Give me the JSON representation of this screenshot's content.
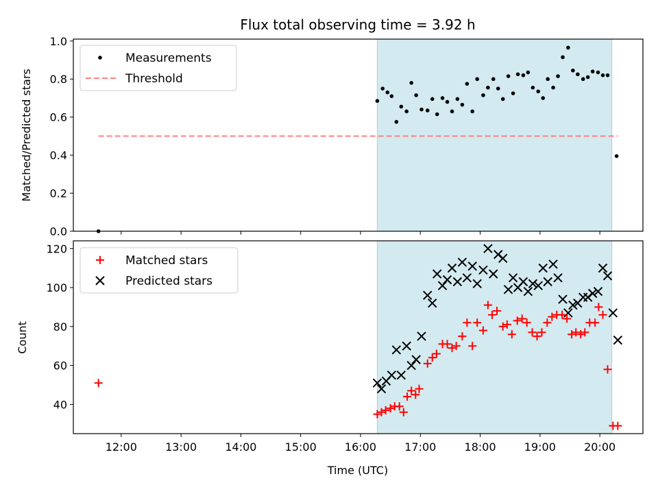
{
  "chart_data": [
    {
      "type": "scatter",
      "title": "Flux total observing time = 3.92 h",
      "ylabel": "Matched/Predicted stars",
      "xlim": [
        11.2,
        20.72
      ],
      "ylim": [
        0,
        1.01
      ],
      "yticks": [
        "0.0",
        "0.2",
        "0.4",
        "0.6",
        "0.8",
        "1.0"
      ],
      "ytick_values": [
        0,
        0.2,
        0.4,
        0.6,
        0.8,
        1.0
      ],
      "shaded_range": [
        16.28,
        20.2
      ],
      "shade_color": "#d3eaf0",
      "legend": {
        "placement": "top-left",
        "entries": [
          "Measurements",
          "Threshold"
        ]
      },
      "series": [
        {
          "name": "Measurements",
          "marker": "dot",
          "color": "#000000",
          "x": [
            11.62,
            16.28,
            16.37,
            16.45,
            16.52,
            16.6,
            16.68,
            16.77,
            16.85,
            16.93,
            17.02,
            17.12,
            17.2,
            17.28,
            17.37,
            17.45,
            17.53,
            17.62,
            17.7,
            17.78,
            17.87,
            17.95,
            18.05,
            18.13,
            18.22,
            18.3,
            18.38,
            18.47,
            18.55,
            18.63,
            18.72,
            18.8,
            18.88,
            18.97,
            19.05,
            19.13,
            19.22,
            19.3,
            19.38,
            19.47,
            19.55,
            19.63,
            19.72,
            19.8,
            19.88,
            19.97,
            20.05,
            20.13,
            20.28
          ],
          "y": [
            0.0,
            0.685,
            0.75,
            0.73,
            0.71,
            0.575,
            0.655,
            0.63,
            0.78,
            0.715,
            0.64,
            0.635,
            0.695,
            0.615,
            0.7,
            0.68,
            0.63,
            0.695,
            0.665,
            0.775,
            0.63,
            0.8,
            0.715,
            0.755,
            0.8,
            0.75,
            0.695,
            0.815,
            0.725,
            0.825,
            0.82,
            0.835,
            0.755,
            0.735,
            0.7,
            0.8,
            0.755,
            0.815,
            0.915,
            0.965,
            0.845,
            0.825,
            0.8,
            0.81,
            0.84,
            0.835,
            0.82,
            0.82,
            0.395
          ]
        },
        {
          "name": "Threshold",
          "marker": "dashed-line",
          "color": "#ff7f7f",
          "x": [
            11.62,
            20.3
          ],
          "y": [
            0.5,
            0.5
          ]
        }
      ]
    },
    {
      "type": "scatter",
      "xlabel": "Time (UTC)",
      "ylabel": "Count",
      "xlim": [
        11.2,
        20.72
      ],
      "ylim": [
        25,
        124
      ],
      "xticks": [
        "12:00",
        "13:00",
        "14:00",
        "15:00",
        "16:00",
        "17:00",
        "18:00",
        "19:00",
        "20:00"
      ],
      "xtick_values": [
        12,
        13,
        14,
        15,
        16,
        17,
        18,
        19,
        20
      ],
      "yticks": [
        "40",
        "60",
        "80",
        "100",
        "120"
      ],
      "ytick_values": [
        40,
        60,
        80,
        100,
        120
      ],
      "shaded_range": [
        16.28,
        20.2
      ],
      "shade_color": "#d3eaf0",
      "legend": {
        "placement": "top-left",
        "entries": [
          "Matched stars",
          "Predicted stars"
        ]
      },
      "series": [
        {
          "name": "Matched stars",
          "marker": "plus",
          "color": "#ff0000",
          "x": [
            11.62,
            16.28,
            16.35,
            16.42,
            16.5,
            16.57,
            16.65,
            16.72,
            16.78,
            16.85,
            16.92,
            16.98,
            17.12,
            17.2,
            17.27,
            17.37,
            17.45,
            17.53,
            17.6,
            17.7,
            17.78,
            17.87,
            17.95,
            18.05,
            18.13,
            18.2,
            18.28,
            18.38,
            18.45,
            18.53,
            18.62,
            18.7,
            18.78,
            18.87,
            18.95,
            19.03,
            19.12,
            19.2,
            19.28,
            19.37,
            19.45,
            19.53,
            19.6,
            19.68,
            19.75,
            19.83,
            19.92,
            19.98,
            20.05,
            20.13,
            20.22,
            20.3
          ],
          "y": [
            51,
            35,
            36,
            37,
            38,
            39,
            39,
            36,
            44,
            47,
            45,
            48,
            61,
            64,
            66,
            71,
            71,
            69,
            70,
            75,
            82,
            70,
            82,
            78,
            91,
            86,
            88,
            80,
            81,
            76,
            83,
            84,
            82,
            77,
            75,
            77,
            82,
            85,
            86,
            86,
            84,
            76,
            77,
            76,
            77,
            82,
            82,
            90,
            86,
            58,
            29,
            29
          ]
        },
        {
          "name": "Predicted stars",
          "marker": "x",
          "color": "#000000",
          "x": [
            16.28,
            16.35,
            16.43,
            16.52,
            16.6,
            16.68,
            16.77,
            16.85,
            16.93,
            17.02,
            17.12,
            17.2,
            17.28,
            17.37,
            17.45,
            17.53,
            17.62,
            17.7,
            17.78,
            17.87,
            17.95,
            18.05,
            18.13,
            18.22,
            18.3,
            18.38,
            18.47,
            18.55,
            18.63,
            18.72,
            18.8,
            18.88,
            18.97,
            19.05,
            19.13,
            19.22,
            19.3,
            19.38,
            19.47,
            19.55,
            19.63,
            19.72,
            19.8,
            19.88,
            19.97,
            20.05,
            20.13,
            20.22,
            20.3
          ],
          "y": [
            51,
            48,
            52,
            55,
            68,
            55,
            70,
            60,
            63,
            75,
            96,
            92,
            107,
            101,
            104,
            110,
            103,
            113,
            105,
            111,
            102,
            109,
            120,
            107,
            117,
            115,
            99,
            105,
            100,
            103,
            98,
            102,
            101,
            110,
            103,
            112,
            105,
            94,
            87,
            91,
            92,
            95,
            95,
            97,
            98,
            110,
            106,
            87,
            73
          ]
        }
      ]
    }
  ]
}
